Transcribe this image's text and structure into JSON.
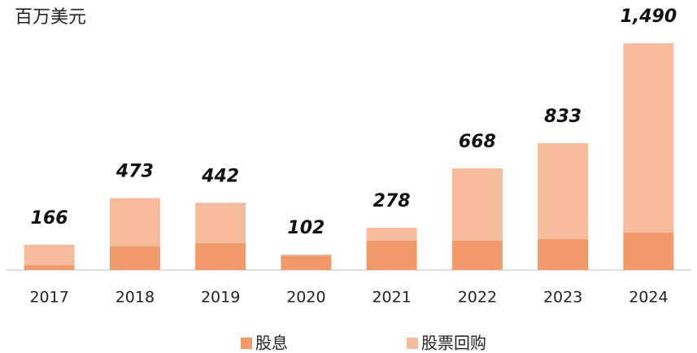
{
  "chart_data": {
    "type": "stacked_bar",
    "title": "百万美元",
    "categories": [
      "2017",
      "2018",
      "2019",
      "2020",
      "2021",
      "2022",
      "2023",
      "2024"
    ],
    "series": [
      {
        "name": "股息",
        "color": "#f0996a",
        "values": [
          32,
          155,
          177,
          95,
          193,
          193,
          203,
          246
        ]
      },
      {
        "name": "股票回购",
        "color": "#f6bc9c",
        "values": [
          134,
          318,
          265,
          7,
          85,
          475,
          630,
          1244
        ]
      }
    ],
    "totals": [
      166,
      473,
      442,
      102,
      278,
      668,
      833,
      1490
    ],
    "total_labels": [
      "166",
      "473",
      "442",
      "102",
      "278",
      "668",
      "833",
      "1,490"
    ],
    "ylim": [
      0,
      1560
    ],
    "legend": "bottom"
  }
}
